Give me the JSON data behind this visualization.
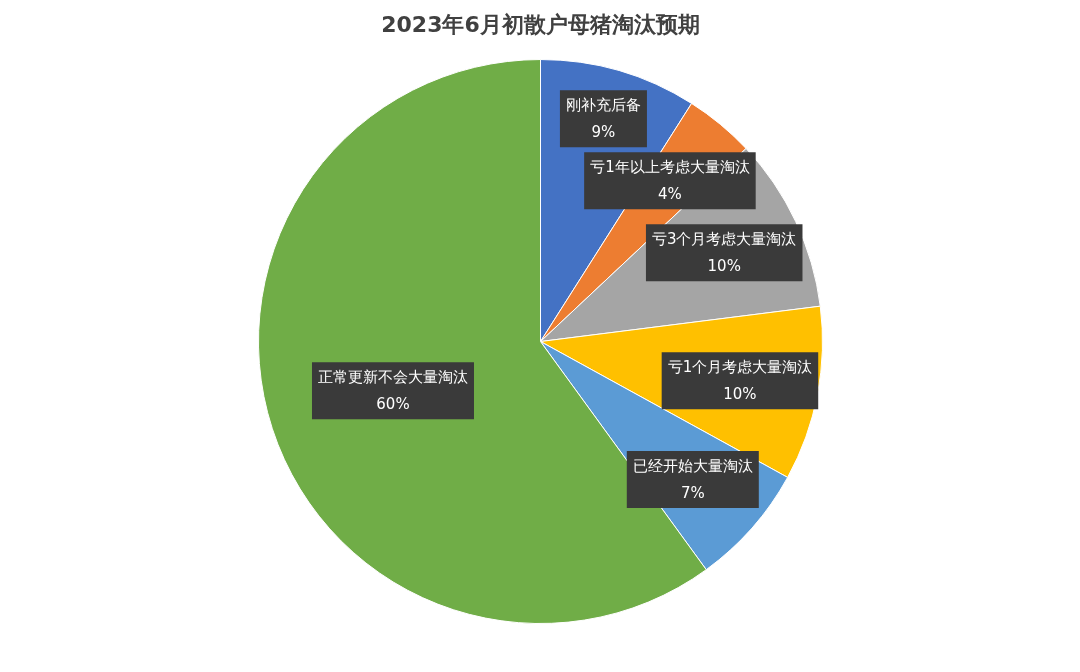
{
  "chart_data": {
    "type": "pie",
    "title": "2023年6月初散户母猪淘汰预期",
    "categories": [
      "刚补充后备",
      "亏1年以上考虑大量淘汰",
      "亏3个月考虑大量淘汰",
      "亏1个月考虑大量淘汰",
      "已经开始大量淘汰",
      "正常更新不会大量淘汰"
    ],
    "values": [
      9,
      4,
      10,
      10,
      7,
      60
    ],
    "colors": [
      "#4472c4",
      "#ed7d31",
      "#a5a5a5",
      "#ffc000",
      "#5b9bd5",
      "#70ad47"
    ],
    "value_labels": [
      "9%",
      "4%",
      "10%",
      "10%",
      "7%",
      "60%"
    ]
  }
}
